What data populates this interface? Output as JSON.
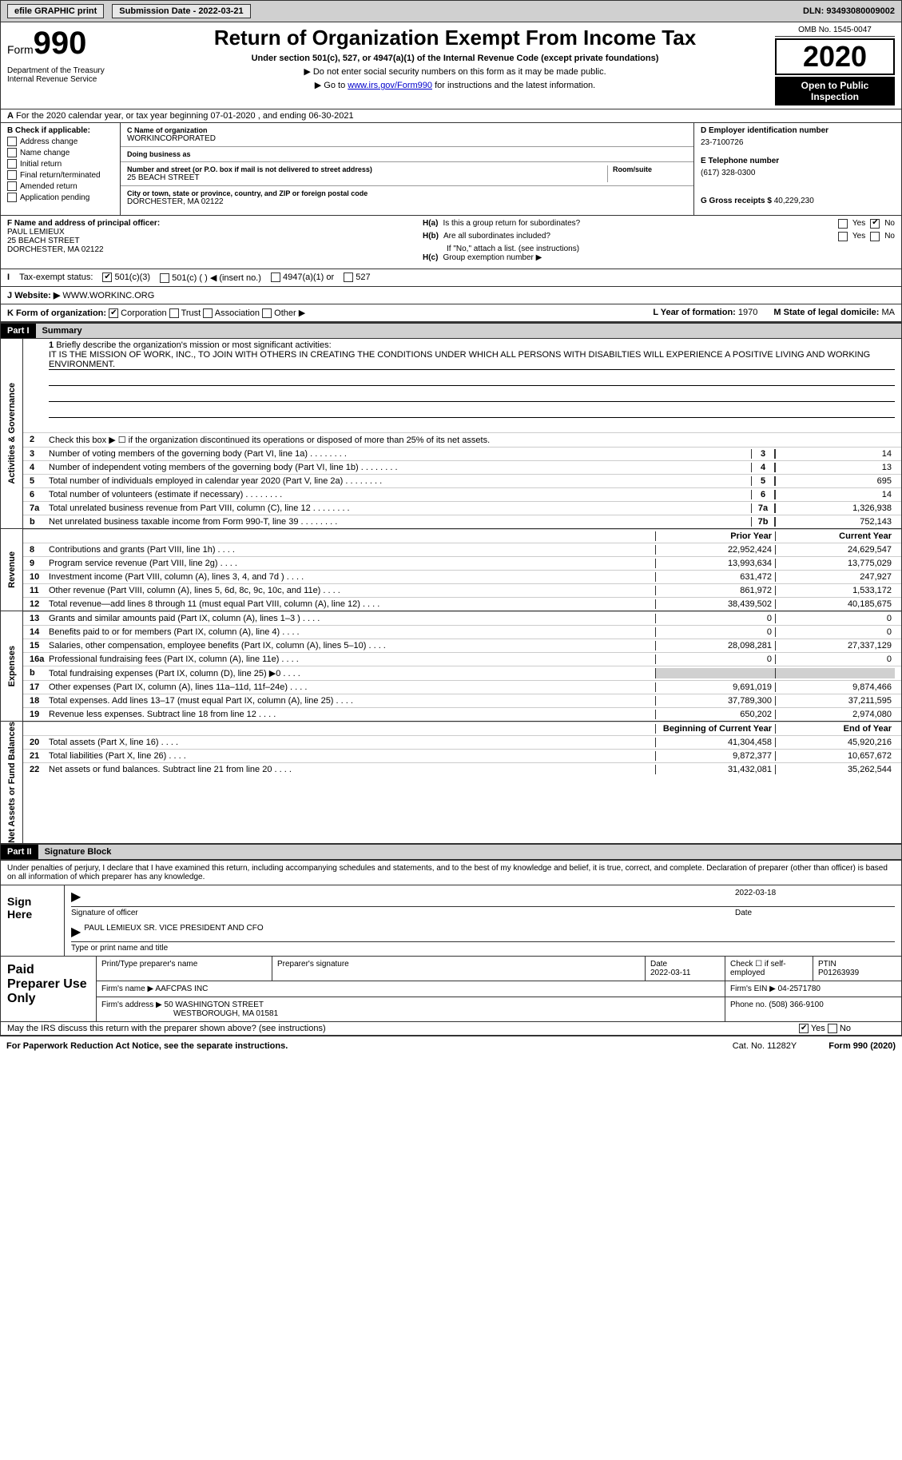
{
  "top": {
    "efile": "efile GRAPHIC print",
    "sub_label": "Submission Date - 2022-03-21",
    "dln": "DLN: 93493080009002"
  },
  "header": {
    "form_word": "Form",
    "form_num": "990",
    "dept": "Department of the Treasury\nInternal Revenue Service",
    "title": "Return of Organization Exempt From Income Tax",
    "subtitle": "Under section 501(c), 527, or 4947(a)(1) of the Internal Revenue Code (except private foundations)",
    "instr1": "▶ Do not enter social security numbers on this form as it may be made public.",
    "instr2_pre": "▶ Go to ",
    "instr2_link": "www.irs.gov/Form990",
    "instr2_post": " for instructions and the latest information.",
    "omb": "OMB No. 1545-0047",
    "year": "2020",
    "open": "Open to Public Inspection"
  },
  "rowA": "For the 2020 calendar year, or tax year beginning 07-01-2020   , and ending 06-30-2021",
  "boxB": {
    "label": "B Check if applicable:",
    "items": [
      "Address change",
      "Name change",
      "Initial return",
      "Final return/terminated",
      "Amended return",
      "Application pending"
    ]
  },
  "boxC": {
    "name_label": "C Name of organization",
    "name": "WORKINCORPORATED",
    "dba_label": "Doing business as",
    "street_label": "Number and street (or P.O. box if mail is not delivered to street address)",
    "room_label": "Room/suite",
    "street": "25 BEACH STREET",
    "city_label": "City or town, state or province, country, and ZIP or foreign postal code",
    "city": "DORCHESTER, MA  02122"
  },
  "boxD": {
    "ein_label": "D Employer identification number",
    "ein": "23-7100726",
    "phone_label": "E Telephone number",
    "phone": "(617) 328-0300",
    "gross_label": "G Gross receipts $",
    "gross": "40,229,230"
  },
  "boxF": {
    "label": "F  Name and address of principal officer:",
    "name": "PAUL LEMIEUX",
    "addr1": "25 BEACH STREET",
    "addr2": "DORCHESTER, MA  02122"
  },
  "boxH": {
    "ha": "Is this a group return for subordinates?",
    "hb": "Are all subordinates included?",
    "hb_note": "If \"No,\" attach a list. (see instructions)",
    "hc": "Group exemption number ▶",
    "yes": "Yes",
    "no": "No"
  },
  "rowI": {
    "label": "Tax-exempt status:",
    "o1": "501(c)(3)",
    "o2": "501(c) (  ) ◀ (insert no.)",
    "o3": "4947(a)(1) or",
    "o4": "527"
  },
  "rowJ": {
    "label": "Website: ▶",
    "val": "WWW.WORKINC.ORG"
  },
  "rowK": {
    "label": "K Form of organization:",
    "opts": [
      "Corporation",
      "Trust",
      "Association",
      "Other ▶"
    ],
    "l_year_label": "L Year of formation:",
    "l_year": "1970",
    "m_state_label": "M State of legal domicile:",
    "m_state": "MA"
  },
  "part1": {
    "hdr": "Part I",
    "title": "Summary"
  },
  "mission": {
    "label": "Briefly describe the organization's mission or most significant activities:",
    "text": "IT IS THE MISSION OF WORK, INC., TO JOIN WITH OTHERS IN CREATING THE CONDITIONS UNDER WHICH ALL PERSONS WITH DISABILTIES WILL EXPERIENCE A POSITIVE LIVING AND WORKING ENVIRONMENT."
  },
  "gov": {
    "l2": "Check this box ▶ ☐  if the organization discontinued its operations or disposed of more than 25% of its net assets.",
    "rows": [
      {
        "n": "3",
        "d": "Number of voting members of the governing body (Part VI, line 1a)",
        "b": "3",
        "v": "14"
      },
      {
        "n": "4",
        "d": "Number of independent voting members of the governing body (Part VI, line 1b)",
        "b": "4",
        "v": "13"
      },
      {
        "n": "5",
        "d": "Total number of individuals employed in calendar year 2020 (Part V, line 2a)",
        "b": "5",
        "v": "695"
      },
      {
        "n": "6",
        "d": "Total number of volunteers (estimate if necessary)",
        "b": "6",
        "v": "14"
      },
      {
        "n": "7a",
        "d": "Total unrelated business revenue from Part VIII, column (C), line 12",
        "b": "7a",
        "v": "1,326,938"
      },
      {
        "n": "b",
        "d": "Net unrelated business taxable income from Form 990-T, line 39",
        "b": "7b",
        "v": "752,143"
      }
    ]
  },
  "cols": {
    "prior": "Prior Year",
    "current": "Current Year",
    "boy": "Beginning of Current Year",
    "eoy": "End of Year"
  },
  "revenue": [
    {
      "n": "8",
      "d": "Contributions and grants (Part VIII, line 1h)",
      "p": "22,952,424",
      "c": "24,629,547"
    },
    {
      "n": "9",
      "d": "Program service revenue (Part VIII, line 2g)",
      "p": "13,993,634",
      "c": "13,775,029"
    },
    {
      "n": "10",
      "d": "Investment income (Part VIII, column (A), lines 3, 4, and 7d )",
      "p": "631,472",
      "c": "247,927"
    },
    {
      "n": "11",
      "d": "Other revenue (Part VIII, column (A), lines 5, 6d, 8c, 9c, 10c, and 11e)",
      "p": "861,972",
      "c": "1,533,172"
    },
    {
      "n": "12",
      "d": "Total revenue—add lines 8 through 11 (must equal Part VIII, column (A), line 12)",
      "p": "38,439,502",
      "c": "40,185,675"
    }
  ],
  "expenses": [
    {
      "n": "13",
      "d": "Grants and similar amounts paid (Part IX, column (A), lines 1–3 )",
      "p": "0",
      "c": "0"
    },
    {
      "n": "14",
      "d": "Benefits paid to or for members (Part IX, column (A), line 4)",
      "p": "0",
      "c": "0"
    },
    {
      "n": "15",
      "d": "Salaries, other compensation, employee benefits (Part IX, column (A), lines 5–10)",
      "p": "28,098,281",
      "c": "27,337,129"
    },
    {
      "n": "16a",
      "d": "Professional fundraising fees (Part IX, column (A), line 11e)",
      "p": "0",
      "c": "0"
    },
    {
      "n": "b",
      "d": "Total fundraising expenses (Part IX, column (D), line 25) ▶0",
      "p": "",
      "c": "",
      "grey": true
    },
    {
      "n": "17",
      "d": "Other expenses (Part IX, column (A), lines 11a–11d, 11f–24e)",
      "p": "9,691,019",
      "c": "9,874,466"
    },
    {
      "n": "18",
      "d": "Total expenses. Add lines 13–17 (must equal Part IX, column (A), line 25)",
      "p": "37,789,300",
      "c": "37,211,595"
    },
    {
      "n": "19",
      "d": "Revenue less expenses. Subtract line 18 from line 12",
      "p": "650,202",
      "c": "2,974,080"
    }
  ],
  "netassets": [
    {
      "n": "20",
      "d": "Total assets (Part X, line 16)",
      "p": "41,304,458",
      "c": "45,920,216"
    },
    {
      "n": "21",
      "d": "Total liabilities (Part X, line 26)",
      "p": "9,872,377",
      "c": "10,657,672"
    },
    {
      "n": "22",
      "d": "Net assets or fund balances. Subtract line 21 from line 20",
      "p": "31,432,081",
      "c": "35,262,544"
    }
  ],
  "part2": {
    "hdr": "Part II",
    "title": "Signature Block"
  },
  "sig": {
    "intro": "Under penalties of perjury, I declare that I have examined this return, including accompanying schedules and statements, and to the best of my knowledge and belief, it is true, correct, and complete. Declaration of preparer (other than officer) is based on all information of which preparer has any knowledge.",
    "sign_here": "Sign Here",
    "sig_label": "Signature of officer",
    "date_label": "Date",
    "date": "2022-03-18",
    "name": "PAUL LEMIEUX  SR. VICE PRESIDENT AND CFO",
    "name_label": "Type or print name and title"
  },
  "prep": {
    "label": "Paid Preparer Use Only",
    "r1_c1": "Print/Type preparer's name",
    "r1_c2": "Preparer's signature",
    "r1_c3_l": "Date",
    "r1_c3_v": "2022-03-11",
    "r1_c4": "Check ☐ if self-employed",
    "r1_c5_l": "PTIN",
    "r1_c5_v": "P01263939",
    "r2_l": "Firm's name   ▶",
    "r2_v": "AAFCPAS INC",
    "r2b_l": "Firm's EIN ▶",
    "r2b_v": "04-2571780",
    "r3_l": "Firm's address ▶",
    "r3_v1": "50 WASHINGTON STREET",
    "r3_v2": "WESTBOROUGH, MA  01581",
    "r3b_l": "Phone no.",
    "r3b_v": "(508) 366-9100"
  },
  "discuss": "May the IRS discuss this return with the preparer shown above? (see instructions)",
  "footer": {
    "left": "For Paperwork Reduction Act Notice, see the separate instructions.",
    "mid": "Cat. No. 11282Y",
    "right": "Form 990 (2020)"
  },
  "sides": {
    "gov": "Activities & Governance",
    "rev": "Revenue",
    "exp": "Expenses",
    "net": "Net Assets or Fund Balances"
  }
}
